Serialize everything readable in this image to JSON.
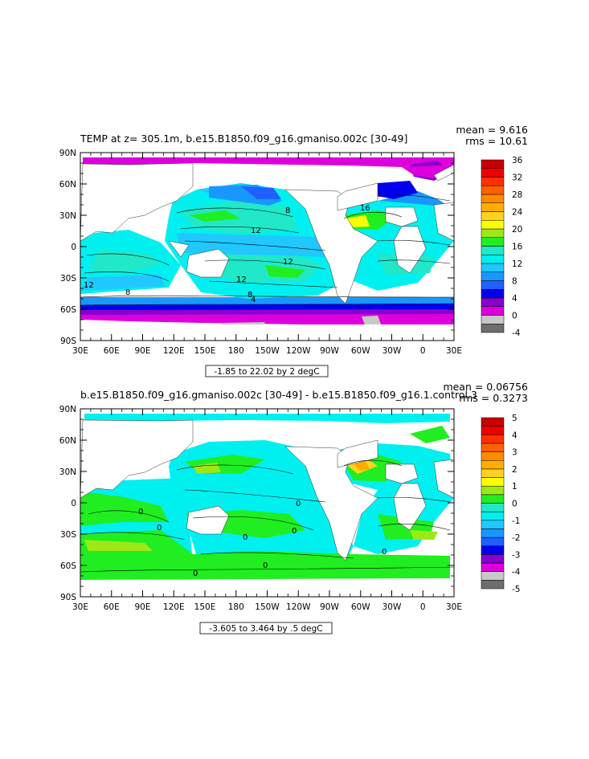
{
  "chart_data": [
    {
      "type": "heatmap",
      "title": "TEMP at z= 305.1m, b.e15.B1850.f09_g16.gmaniso.002c [30-49]",
      "stats": {
        "mean_label": "mean = 9.616",
        "rms_label": "rms = 10.61"
      },
      "x_ticks": [
        "30E",
        "60E",
        "90E",
        "120E",
        "150E",
        "180",
        "150W",
        "120W",
        "90W",
        "60W",
        "30W",
        "0",
        "30E"
      ],
      "y_ticks": [
        "90N",
        "60N",
        "30N",
        "0",
        "30S",
        "60S",
        "90S"
      ],
      "xlim": [
        30,
        390
      ],
      "ylim": [
        -90,
        90
      ],
      "contour_note": "-1.85 to 22.02 by 2 degC",
      "colorbar": {
        "labels": [
          "36",
          "32",
          "28",
          "24",
          "20",
          "16",
          "12",
          "8",
          "4",
          "0",
          "-4"
        ],
        "levels": [
          -4,
          -2,
          0,
          2,
          4,
          6,
          8,
          10,
          12,
          14,
          16,
          18,
          20,
          22,
          24,
          26,
          28,
          30,
          32,
          34,
          36
        ],
        "colors": [
          "#6e6e6e",
          "#c8c8c8",
          "#dd00dd",
          "#8a00cc",
          "#0000ee",
          "#2060ff",
          "#1898ff",
          "#20c8ff",
          "#00f0f0",
          "#20e8c8",
          "#20ee20",
          "#9ee818",
          "#ffff00",
          "#ffd21e",
          "#ffae00",
          "#ff8a00",
          "#ff6000",
          "#ff3000",
          "#ee0000",
          "#c80000"
        ]
      },
      "contour_labels": [
        "8",
        "12",
        "16",
        "12",
        "12",
        "12",
        "8",
        "8",
        "4"
      ],
      "grid": false
    },
    {
      "type": "heatmap",
      "title": "b.e15.B1850.f09_g16.gmaniso.002c [30-49] - b.e15.B1850.f09_g16.1.control.3",
      "stats": {
        "mean_label": "mean = 0.06756",
        "rms_label": "rms = 0.3273"
      },
      "x_ticks": [
        "30E",
        "60E",
        "90E",
        "120E",
        "150E",
        "180",
        "150W",
        "120W",
        "90W",
        "60W",
        "30W",
        "0",
        "30E"
      ],
      "y_ticks": [
        "90N",
        "60N",
        "30N",
        "0",
        "30S",
        "60S",
        "90S"
      ],
      "xlim": [
        30,
        390
      ],
      "ylim": [
        -90,
        90
      ],
      "contour_note": "-3.605 to 3.464 by .5 degC",
      "colorbar": {
        "labels": [
          "5",
          "4",
          "3",
          "2",
          "1",
          "0",
          "-1",
          "-2",
          "-3",
          "-4",
          "-5"
        ],
        "levels": [
          -5,
          -4.5,
          -4,
          -3.5,
          -3,
          -2.5,
          -2,
          -1.5,
          -1,
          -0.5,
          0,
          0.5,
          1,
          1.5,
          2,
          2.5,
          3,
          3.5,
          4,
          4.5,
          5
        ],
        "colors": [
          "#6e6e6e",
          "#c8c8c8",
          "#dd00dd",
          "#8a00cc",
          "#0000ee",
          "#2060ff",
          "#1898ff",
          "#20c8ff",
          "#00f0f0",
          "#20e8c8",
          "#20ee20",
          "#9ee818",
          "#ffff00",
          "#ffd21e",
          "#ffae00",
          "#ff8a00",
          "#ff6000",
          "#ff3000",
          "#ee0000",
          "#c80000"
        ]
      },
      "contour_labels": [
        "0",
        "0",
        "0",
        "0",
        "0",
        "0",
        "0",
        "0"
      ],
      "grid": false
    }
  ]
}
